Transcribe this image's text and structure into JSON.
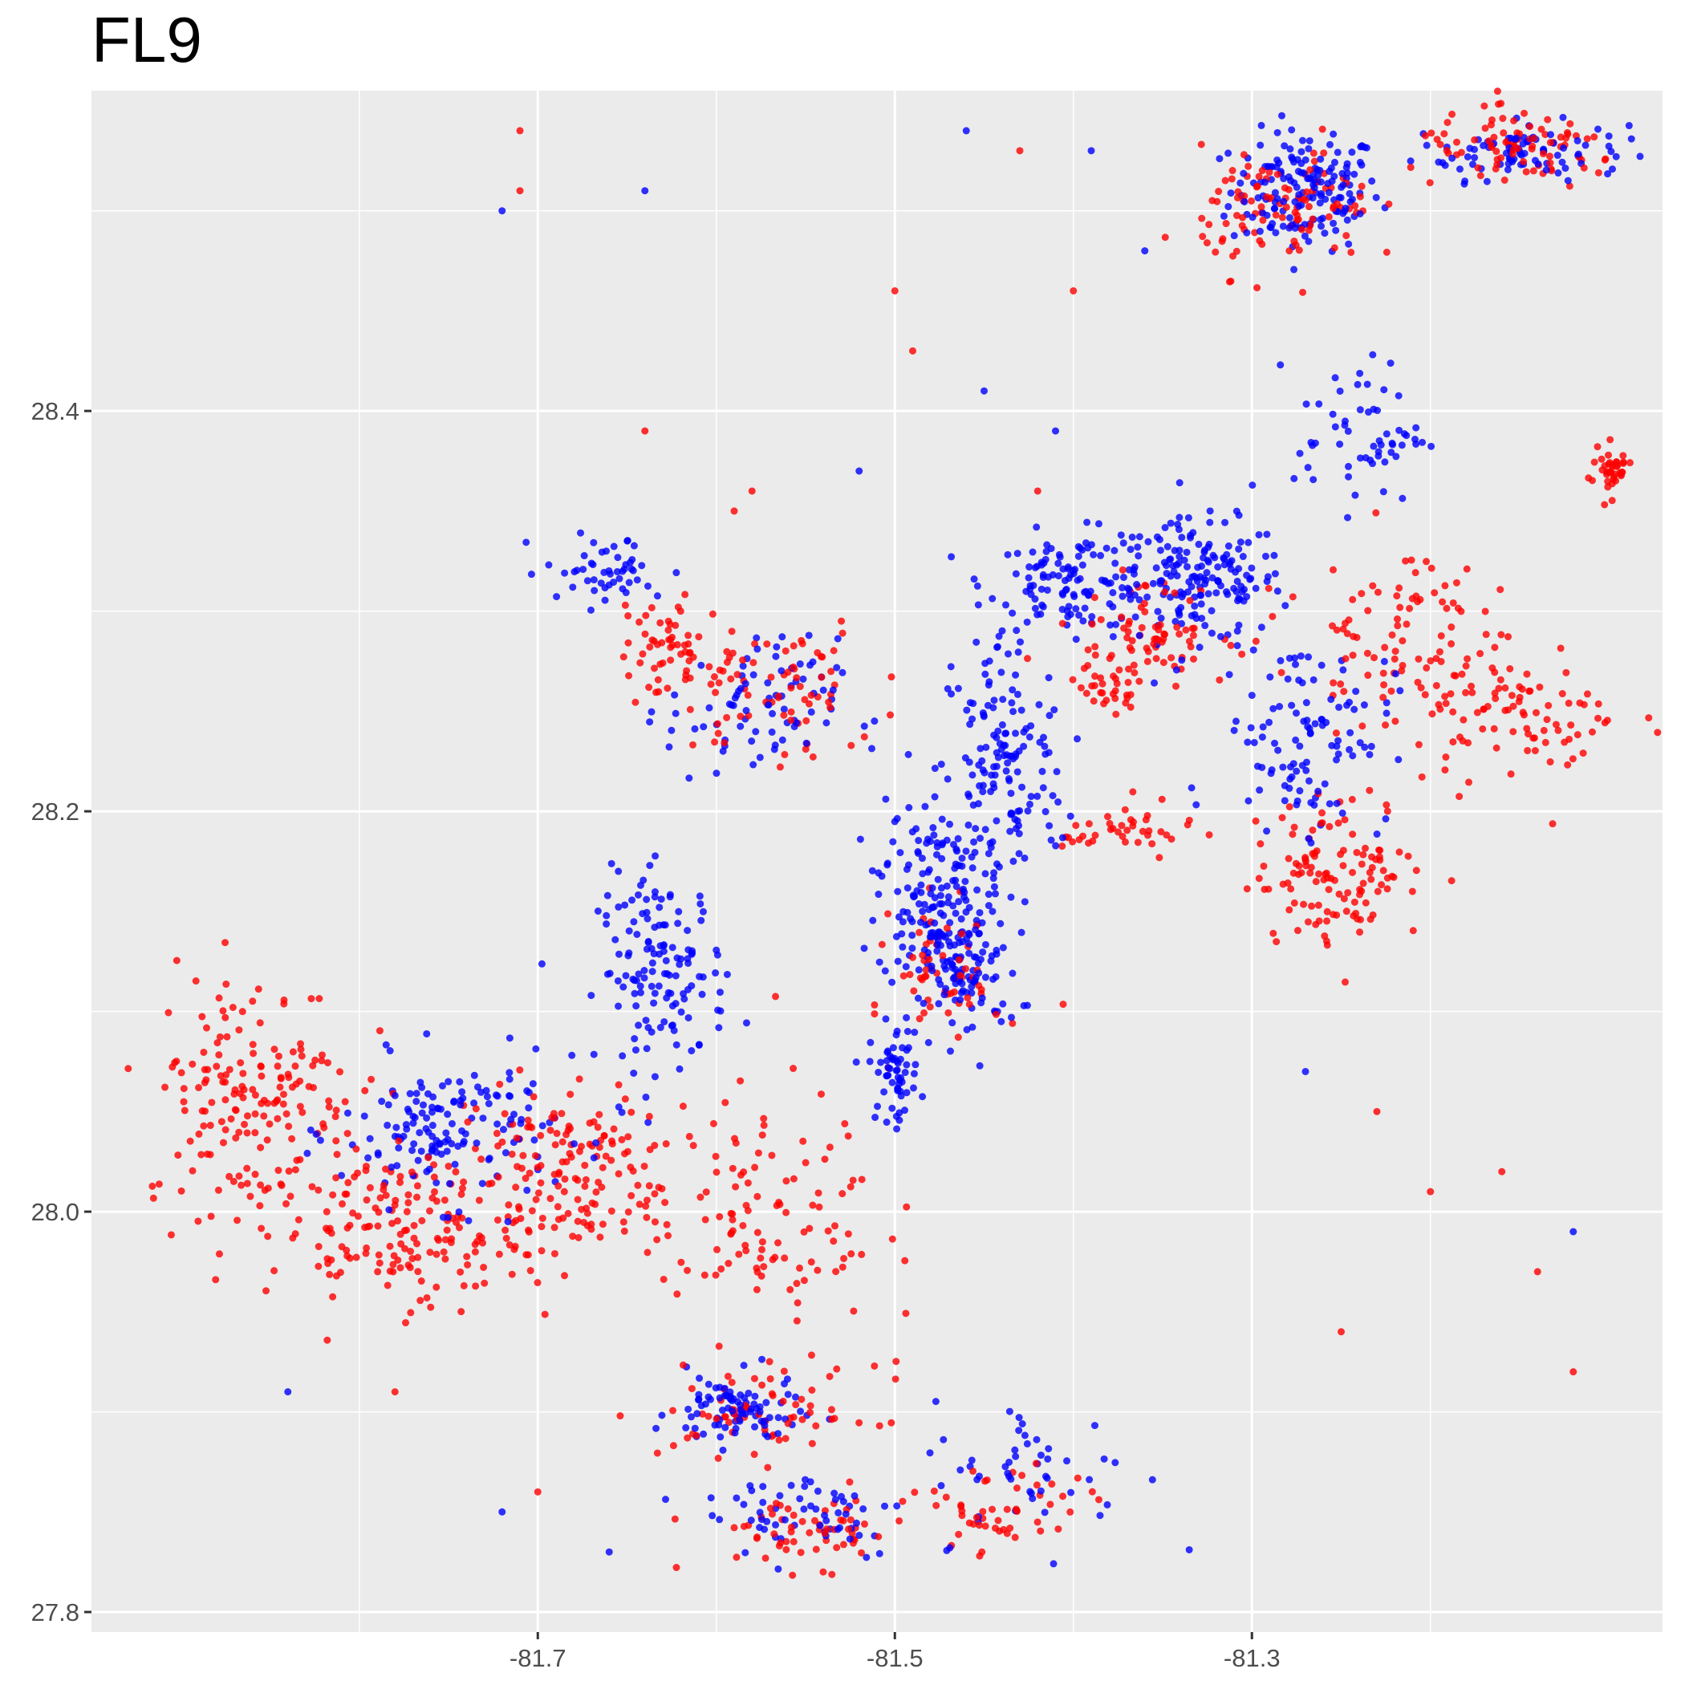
{
  "chart_data": {
    "type": "scatter",
    "title": "FL9",
    "xlabel": "",
    "ylabel": "",
    "xlim": [
      -81.95,
      -81.07
    ],
    "ylim": [
      27.79,
      28.56
    ],
    "x_ticks": [
      -81.7,
      -81.5,
      -81.3
    ],
    "x_tick_labels": [
      "-81.7",
      "-81.5",
      "-81.3"
    ],
    "y_ticks": [
      27.8,
      28.0,
      28.2,
      28.4
    ],
    "y_tick_labels": [
      "27.8",
      "28.0",
      "28.2",
      "28.4"
    ],
    "x_minor_ticks": [
      -81.8,
      -81.6,
      -81.4,
      -81.2
    ],
    "y_minor_ticks": [
      27.9,
      28.1,
      28.3,
      28.5
    ],
    "grid": true,
    "legend": "none",
    "colors": {
      "panel_background": "#EBEBEB",
      "grid": "#FFFFFF",
      "series_a": "#0000FF",
      "series_b": "#FF0000"
    },
    "series": [
      {
        "color": "#0000FF",
        "clusters": [
          {
            "x": -81.27,
            "y": 28.51,
            "rx": 0.035,
            "ry": 0.025,
            "n": 160
          },
          {
            "x": -81.15,
            "y": 28.53,
            "rx": 0.05,
            "ry": 0.012,
            "n": 90
          },
          {
            "x": -81.33,
            "y": 28.315,
            "rx": 0.04,
            "ry": 0.025,
            "n": 170
          },
          {
            "x": -81.4,
            "y": 28.315,
            "rx": 0.04,
            "ry": 0.02,
            "n": 120
          },
          {
            "x": -81.44,
            "y": 28.22,
            "rx": 0.03,
            "ry": 0.06,
            "n": 150
          },
          {
            "x": -81.48,
            "y": 28.16,
            "rx": 0.025,
            "ry": 0.04,
            "n": 150
          },
          {
            "x": -81.46,
            "y": 28.12,
            "rx": 0.025,
            "ry": 0.03,
            "n": 100
          },
          {
            "x": -81.5,
            "y": 28.07,
            "rx": 0.012,
            "ry": 0.02,
            "n": 60
          },
          {
            "x": -81.63,
            "y": 28.12,
            "rx": 0.03,
            "ry": 0.04,
            "n": 140
          },
          {
            "x": -81.75,
            "y": 28.04,
            "rx": 0.05,
            "ry": 0.03,
            "n": 150
          },
          {
            "x": -81.59,
            "y": 27.9,
            "rx": 0.03,
            "ry": 0.015,
            "n": 90
          },
          {
            "x": -81.27,
            "y": 28.24,
            "rx": 0.04,
            "ry": 0.04,
            "n": 110
          },
          {
            "x": -81.58,
            "y": 28.25,
            "rx": 0.04,
            "ry": 0.03,
            "n": 80
          },
          {
            "x": -81.66,
            "y": 28.32,
            "rx": 0.03,
            "ry": 0.015,
            "n": 50
          },
          {
            "x": -81.24,
            "y": 28.39,
            "rx": 0.03,
            "ry": 0.03,
            "n": 60
          },
          {
            "x": -81.55,
            "y": 27.85,
            "rx": 0.05,
            "ry": 0.02,
            "n": 60
          },
          {
            "x": -81.42,
            "y": 27.87,
            "rx": 0.05,
            "ry": 0.03,
            "n": 50
          }
        ],
        "points": [
          [
            -81.72,
            28.5
          ],
          [
            -81.64,
            28.51
          ],
          [
            -81.46,
            28.54
          ],
          [
            -81.39,
            28.53
          ],
          [
            -81.36,
            28.48
          ],
          [
            -81.45,
            28.41
          ],
          [
            -81.41,
            28.39
          ],
          [
            -81.52,
            28.37
          ],
          [
            -81.27,
            28.07
          ],
          [
            -81.84,
            27.91
          ],
          [
            -81.72,
            27.85
          ],
          [
            -81.66,
            27.83
          ],
          [
            -81.12,
            27.99
          ]
        ]
      },
      {
        "color": "#FF0000",
        "clusters": [
          {
            "x": -81.86,
            "y": 28.06,
            "rx": 0.05,
            "ry": 0.05,
            "n": 170
          },
          {
            "x": -81.78,
            "y": 27.99,
            "rx": 0.06,
            "ry": 0.03,
            "n": 170
          },
          {
            "x": -81.69,
            "y": 28.02,
            "rx": 0.05,
            "ry": 0.04,
            "n": 150
          },
          {
            "x": -81.58,
            "y": 28.0,
            "rx": 0.06,
            "ry": 0.05,
            "n": 120
          },
          {
            "x": -81.25,
            "y": 28.17,
            "rx": 0.04,
            "ry": 0.03,
            "n": 120
          },
          {
            "x": -81.22,
            "y": 28.29,
            "rx": 0.04,
            "ry": 0.04,
            "n": 90
          },
          {
            "x": -81.15,
            "y": 28.25,
            "rx": 0.05,
            "ry": 0.03,
            "n": 90
          },
          {
            "x": -81.28,
            "y": 28.5,
            "rx": 0.04,
            "ry": 0.025,
            "n": 110
          },
          {
            "x": -81.15,
            "y": 28.53,
            "rx": 0.05,
            "ry": 0.015,
            "n": 90
          },
          {
            "x": -81.57,
            "y": 28.26,
            "rx": 0.05,
            "ry": 0.03,
            "n": 80
          },
          {
            "x": -81.36,
            "y": 28.29,
            "rx": 0.04,
            "ry": 0.02,
            "n": 80
          },
          {
            "x": -81.57,
            "y": 27.9,
            "rx": 0.05,
            "ry": 0.02,
            "n": 70
          },
          {
            "x": -81.55,
            "y": 27.84,
            "rx": 0.05,
            "ry": 0.015,
            "n": 60
          },
          {
            "x": -81.44,
            "y": 27.85,
            "rx": 0.04,
            "ry": 0.02,
            "n": 50
          },
          {
            "x": -81.63,
            "y": 28.28,
            "rx": 0.02,
            "ry": 0.02,
            "n": 50
          },
          {
            "x": -81.47,
            "y": 28.12,
            "rx": 0.025,
            "ry": 0.03,
            "n": 60
          },
          {
            "x": -81.1,
            "y": 28.37,
            "rx": 0.01,
            "ry": 0.01,
            "n": 40
          },
          {
            "x": -81.37,
            "y": 28.19,
            "rx": 0.03,
            "ry": 0.012,
            "n": 40
          },
          {
            "x": -81.38,
            "y": 28.26,
            "rx": 0.015,
            "ry": 0.008,
            "n": 25
          }
        ],
        "points": [
          [
            -81.71,
            28.54
          ],
          [
            -81.71,
            28.51
          ],
          [
            -81.64,
            28.39
          ],
          [
            -81.5,
            28.46
          ],
          [
            -81.49,
            28.43
          ],
          [
            -81.43,
            28.53
          ],
          [
            -81.4,
            28.46
          ],
          [
            -81.23,
            28.05
          ],
          [
            -81.2,
            28.01
          ],
          [
            -81.16,
            28.02
          ],
          [
            -81.14,
            27.97
          ],
          [
            -81.25,
            27.94
          ],
          [
            -81.12,
            27.92
          ],
          [
            -81.78,
            27.91
          ],
          [
            -81.7,
            27.86
          ],
          [
            -81.59,
            28.35
          ],
          [
            -81.62,
            28.3
          ],
          [
            -81.58,
            28.36
          ],
          [
            -81.42,
            28.36
          ]
        ]
      }
    ]
  }
}
